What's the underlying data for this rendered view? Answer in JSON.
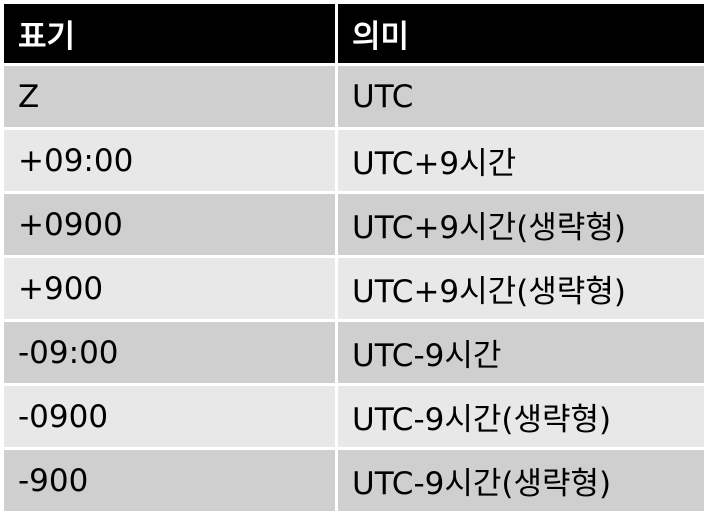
{
  "table": {
    "headers": [
      "표기",
      "의미"
    ],
    "rows": [
      [
        "Z",
        "UTC"
      ],
      [
        "+09:00",
        "UTC+9시간"
      ],
      [
        "+0900",
        "UTC+9시간(생략형)"
      ],
      [
        "+900",
        "UTC+9시간(생략형)"
      ],
      [
        "-09:00",
        "UTC-9시간"
      ],
      [
        "-0900",
        "UTC-9시간(생략형)"
      ],
      [
        "-900",
        "UTC-9시간(생략형)"
      ]
    ]
  },
  "colors": {
    "header_bg": "#000000",
    "header_text": "#ffffff",
    "row_dark": "#cfcfcf",
    "row_light": "#e8e8e8"
  }
}
